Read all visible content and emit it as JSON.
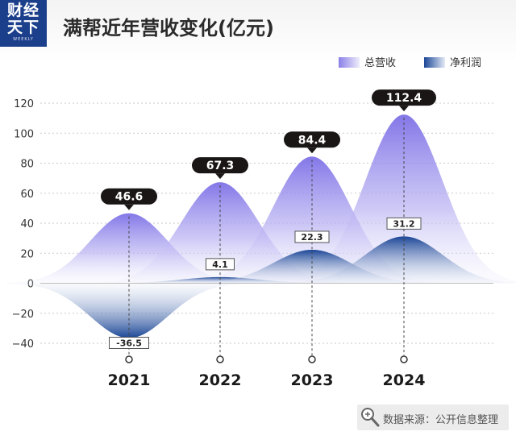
{
  "brand": {
    "line1": "财经",
    "line2": "天下",
    "line3": "WEEKLY"
  },
  "title": "满帮近年营收变化(亿元)",
  "source": "数据来源：公开信息整理",
  "icons": {
    "search": "magnifier-icon"
  },
  "colors": {
    "revenue": "#8a7fe8",
    "profit": "#1d4a96",
    "label_dark": "#1b1616",
    "logo_bg": "#1c3f8c"
  },
  "chart_data": {
    "type": "area",
    "categories": [
      "2021",
      "2022",
      "2023",
      "2024"
    ],
    "series": [
      {
        "name": "总营收",
        "values": [
          46.6,
          67.3,
          84.4,
          112.4
        ]
      },
      {
        "name": "净利润",
        "values": [
          -36.5,
          4.1,
          22.3,
          31.2
        ]
      }
    ],
    "data_labels": {
      "revenue": [
        "46.6",
        "67.3",
        "84.4",
        "112.4"
      ],
      "profit": [
        "-36.5",
        "4.1",
        "22.3",
        "31.2"
      ]
    },
    "yticks": [
      "120",
      "100",
      "80",
      "60",
      "40",
      "20",
      "0",
      "−20",
      "−40"
    ],
    "ylim": [
      -40,
      120
    ],
    "grid": true,
    "legend": "top-right"
  }
}
